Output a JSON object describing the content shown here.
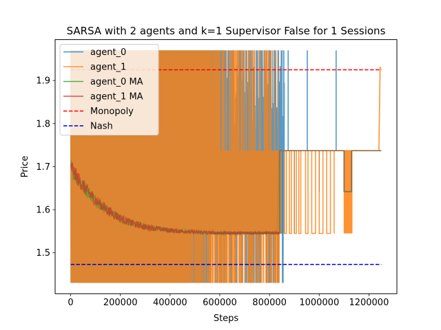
{
  "chart_data": {
    "type": "line",
    "title": "SARSA with 2 agents and k=1 Supervisor False for 1 Sessions",
    "xlabel": "Steps",
    "ylabel": "Price",
    "xlim": [
      -62500,
      1312500
    ],
    "ylim": [
      1.405,
      1.995
    ],
    "xticks": [
      0,
      200000,
      400000,
      600000,
      800000,
      1000000,
      1200000
    ],
    "xtick_labels": [
      "0",
      "200000",
      "400000",
      "600000",
      "800000",
      "1000000",
      "1200000"
    ],
    "yticks": [
      1.5,
      1.6,
      1.7,
      1.8,
      1.9
    ],
    "ytick_labels": [
      "1.5",
      "1.6",
      "1.7",
      "1.8",
      "1.9"
    ],
    "grid": false,
    "legend_position": "top-left",
    "price_levels": [
      1.43,
      1.545,
      1.642,
      1.737,
      1.97
    ],
    "series": [
      {
        "name": "agent_0",
        "color": "#1f77b4",
        "style": "solid",
        "description_points": [
          [
            0,
            1.43
          ],
          [
            600000,
            1.97
          ],
          [
            830000,
            1.545
          ],
          [
            840000,
            1.737
          ],
          [
            1100000,
            1.737
          ],
          [
            1100000,
            1.642
          ],
          [
            1130000,
            1.642
          ],
          [
            1130000,
            1.737
          ],
          [
            1250000,
            1.737
          ]
        ]
      },
      {
        "name": "agent_1",
        "color": "#ff7f0e",
        "style": "solid",
        "description_points": [
          [
            0,
            1.43
          ],
          [
            600000,
            1.97
          ],
          [
            830000,
            1.545
          ],
          [
            840000,
            1.737
          ],
          [
            1240000,
            1.737
          ],
          [
            1245000,
            1.93
          ],
          [
            1250000,
            1.93
          ]
        ]
      },
      {
        "name": "agent_0 MA",
        "color": "#2ca02c",
        "style": "solid",
        "points": [
          [
            0,
            1.7
          ],
          [
            20000,
            1.68
          ],
          [
            50000,
            1.655
          ],
          [
            100000,
            1.622
          ],
          [
            150000,
            1.598
          ],
          [
            200000,
            1.58
          ],
          [
            250000,
            1.568
          ],
          [
            300000,
            1.56
          ],
          [
            400000,
            1.552
          ],
          [
            500000,
            1.548
          ],
          [
            600000,
            1.546
          ],
          [
            700000,
            1.546
          ],
          [
            840000,
            1.546
          ]
        ]
      },
      {
        "name": "agent_1 MA",
        "color": "#d62728",
        "style": "solid",
        "points": [
          [
            0,
            1.7
          ],
          [
            20000,
            1.68
          ],
          [
            50000,
            1.655
          ],
          [
            100000,
            1.622
          ],
          [
            150000,
            1.598
          ],
          [
            200000,
            1.58
          ],
          [
            250000,
            1.568
          ],
          [
            300000,
            1.56
          ],
          [
            400000,
            1.552
          ],
          [
            500000,
            1.548
          ],
          [
            600000,
            1.546
          ],
          [
            700000,
            1.546
          ],
          [
            840000,
            1.546
          ]
        ]
      },
      {
        "name": "Monopoly",
        "color": "#ff0000",
        "style": "dashed",
        "points": [
          [
            0,
            1.925
          ],
          [
            1250000,
            1.925
          ]
        ]
      },
      {
        "name": "Nash",
        "color": "#0000cc",
        "style": "dashed",
        "points": [
          [
            0,
            1.473
          ],
          [
            1250000,
            1.473
          ]
        ]
      }
    ]
  }
}
